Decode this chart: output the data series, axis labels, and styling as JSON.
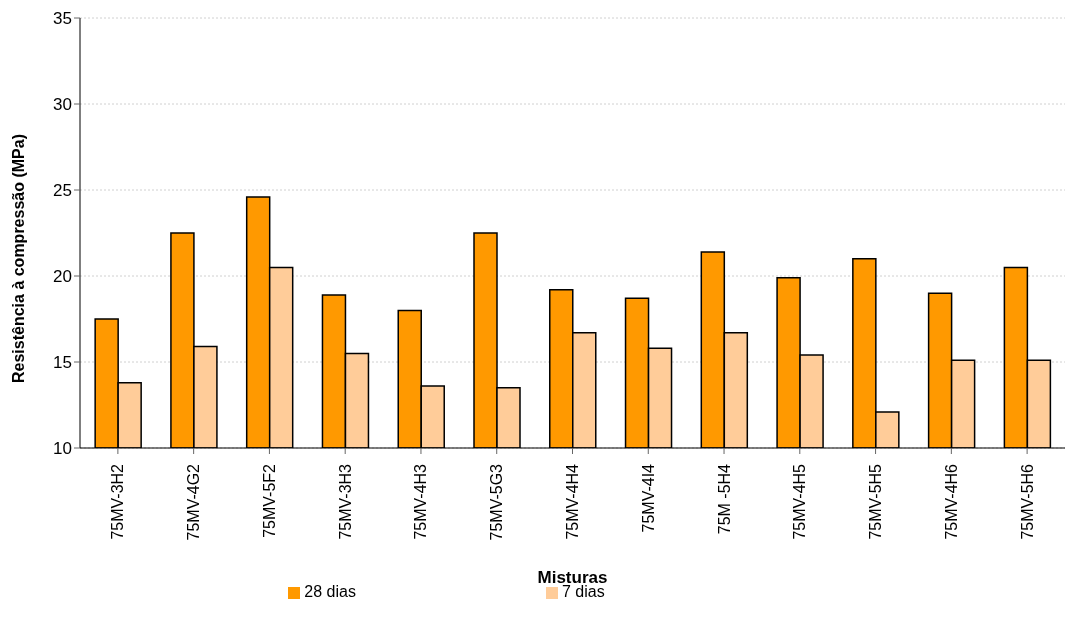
{
  "chart_data": {
    "type": "bar",
    "xlabel": "Misturas",
    "ylabel": "Resistência à compressão (MPa)",
    "categories": [
      "75MV-3H2",
      "75MV-4G2",
      "75MV-5F2",
      "75MV-3H3",
      "75MV-4H3",
      "75MV-5G3",
      "75MV-4H4",
      "75MV-4I4",
      "75M -5H4",
      "75MV-4H5",
      "75MV-5H5",
      "75MV-4H6",
      "75MV-5H6"
    ],
    "series": [
      {
        "name": "28 dias",
        "color": "#ff9900",
        "values": [
          17.5,
          22.5,
          24.6,
          18.9,
          18.0,
          22.5,
          19.2,
          18.7,
          21.4,
          19.9,
          21.0,
          19.0,
          20.5
        ]
      },
      {
        "name": "7 dias",
        "color": "#ffcc99",
        "values": [
          13.8,
          15.9,
          20.5,
          15.5,
          13.6,
          13.5,
          16.7,
          15.8,
          16.7,
          15.4,
          12.1,
          15.1,
          15.1
        ]
      }
    ],
    "ylim": [
      10,
      35
    ],
    "yticks": [
      10,
      15,
      20,
      25,
      30,
      35
    ],
    "grid": "y",
    "legend": "bottom"
  }
}
